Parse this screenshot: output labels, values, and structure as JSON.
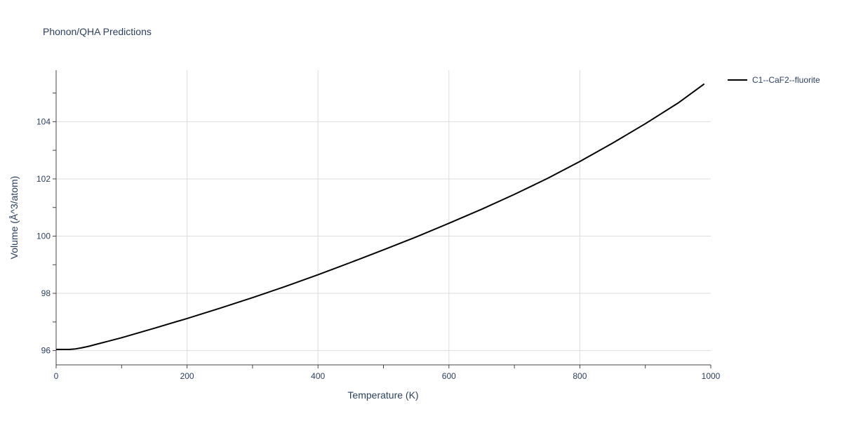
{
  "chart_data": {
    "type": "line",
    "title": "Phonon/QHA Predictions",
    "xlabel": "Temperature (K)",
    "ylabel": "Volume (Å^3/atom)",
    "xlim": [
      0,
      1000
    ],
    "ylim": [
      95.5,
      105.8
    ],
    "xticks": [
      0,
      200,
      400,
      600,
      800,
      1000
    ],
    "yticks": [
      96,
      98,
      100,
      102,
      104
    ],
    "grid": true,
    "legend_position": "top-right",
    "series": [
      {
        "name": "C1--CaF2--fluorite",
        "color": "#000000",
        "x": [
          0,
          10,
          20,
          30,
          40,
          50,
          60,
          80,
          100,
          150,
          200,
          250,
          300,
          350,
          400,
          450,
          500,
          550,
          600,
          650,
          700,
          750,
          800,
          850,
          900,
          950,
          990
        ],
        "y": [
          96.04,
          96.04,
          96.04,
          96.06,
          96.1,
          96.15,
          96.21,
          96.33,
          96.45,
          96.78,
          97.12,
          97.48,
          97.85,
          98.24,
          98.65,
          99.08,
          99.52,
          99.97,
          100.45,
          100.94,
          101.46,
          102.01,
          102.61,
          103.25,
          103.93,
          104.65,
          105.32
        ]
      }
    ]
  }
}
